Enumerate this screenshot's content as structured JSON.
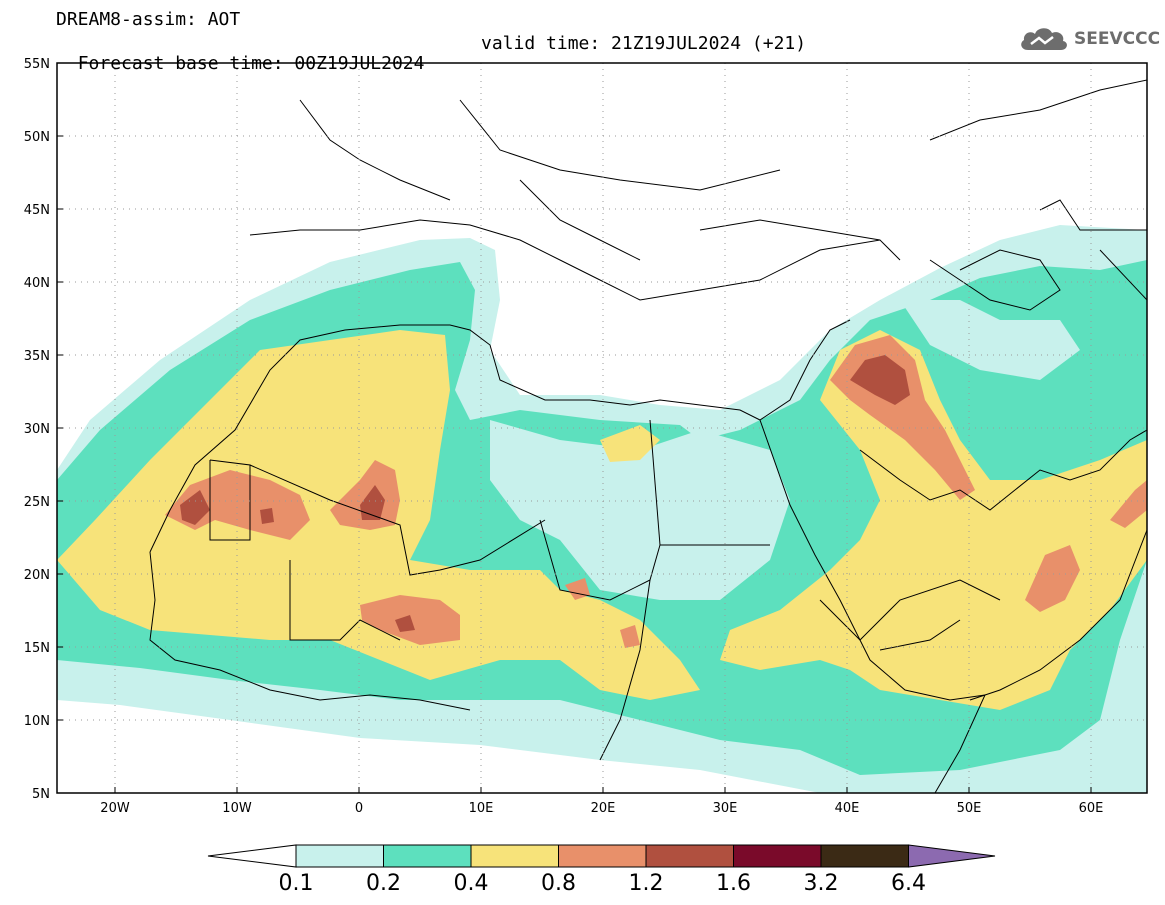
{
  "title": {
    "line1": "DREAM8-assim: AOT",
    "base_time": "Forecast base time: 00Z19JUL2024",
    "valid_time": "valid time: 21Z19JUL2024 (+21)"
  },
  "logo": {
    "text": "SEEVCCC",
    "icon": "cloud-icon"
  },
  "axes": {
    "lat_labels": [
      "55N",
      "50N",
      "45N",
      "40N",
      "35N",
      "30N",
      "25N",
      "20N",
      "15N",
      "10N",
      "5N"
    ],
    "lon_labels": [
      "20W",
      "10W",
      "0",
      "10E",
      "20E",
      "30E",
      "40E",
      "50E",
      "60E"
    ]
  },
  "colorbar": {
    "labels": [
      "0.1",
      "0.2",
      "0.4",
      "0.8",
      "1.2",
      "1.6",
      "3.2",
      "6.4"
    ],
    "colors": [
      "#c8f1ec",
      "#5de0be",
      "#f7e37a",
      "#e8906a",
      "#b0503f",
      "#7a0a2a",
      "#3b2a15",
      "#8c6ab0"
    ]
  }
}
